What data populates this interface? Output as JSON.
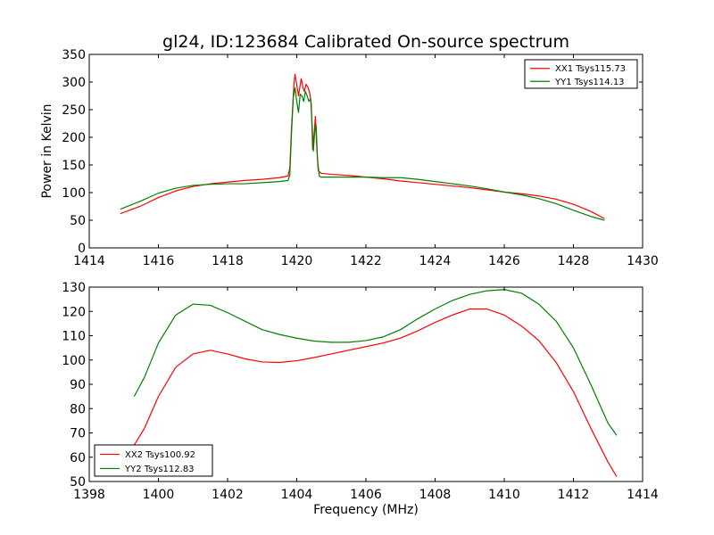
{
  "title": "gl24, ID:123684 Calibrated On-source spectrum",
  "chart_data": [
    {
      "type": "line",
      "ylabel": "Power in Kelvin",
      "xlabel": "",
      "xlim": [
        1414,
        1430
      ],
      "ylim": [
        0,
        350
      ],
      "xticks": [
        1414,
        1416,
        1418,
        1420,
        1422,
        1424,
        1426,
        1428,
        1430
      ],
      "yticks": [
        0,
        50,
        100,
        150,
        200,
        250,
        300,
        350
      ],
      "grid": false,
      "legend": "top-right",
      "series": [
        {
          "name": "XX1 Tsys115.73",
          "color": "#ff0000",
          "points": [
            [
              1414.9,
              62
            ],
            [
              1415.5,
              76
            ],
            [
              1416,
              91
            ],
            [
              1416.5,
              103
            ],
            [
              1417,
              111
            ],
            [
              1417.5,
              116
            ],
            [
              1418,
              119
            ],
            [
              1418.5,
              122
            ],
            [
              1419,
              124
            ],
            [
              1419.5,
              127
            ],
            [
              1419.75,
              130
            ],
            [
              1419.8,
              145
            ],
            [
              1419.85,
              220
            ],
            [
              1419.92,
              298
            ],
            [
              1419.95,
              314
            ],
            [
              1420.0,
              295
            ],
            [
              1420.05,
              275
            ],
            [
              1420.1,
              295
            ],
            [
              1420.13,
              306
            ],
            [
              1420.18,
              290
            ],
            [
              1420.22,
              283
            ],
            [
              1420.27,
              296
            ],
            [
              1420.33,
              290
            ],
            [
              1420.38,
              278
            ],
            [
              1420.42,
              260
            ],
            [
              1420.46,
              178
            ],
            [
              1420.5,
              205
            ],
            [
              1420.54,
              238
            ],
            [
              1420.58,
              180
            ],
            [
              1420.62,
              140
            ],
            [
              1420.7,
              135
            ],
            [
              1421,
              133
            ],
            [
              1421.5,
              131
            ],
            [
              1422,
              128
            ],
            [
              1422.5,
              125
            ],
            [
              1423,
              121
            ],
            [
              1423.5,
              118
            ],
            [
              1424,
              115
            ],
            [
              1424.5,
              112
            ],
            [
              1425,
              109
            ],
            [
              1425.5,
              105
            ],
            [
              1426,
              101
            ],
            [
              1426.5,
              98
            ],
            [
              1427,
              94
            ],
            [
              1427.5,
              88
            ],
            [
              1428,
              79
            ],
            [
              1428.5,
              66
            ],
            [
              1428.9,
              53
            ]
          ]
        },
        {
          "name": "YY1 Tsys114.13",
          "color": "#008000",
          "points": [
            [
              1414.9,
              70
            ],
            [
              1415.5,
              85
            ],
            [
              1416,
              99
            ],
            [
              1416.5,
              108
            ],
            [
              1417,
              113
            ],
            [
              1417.5,
              115
            ],
            [
              1418,
              116
            ],
            [
              1418.5,
              116
            ],
            [
              1419,
              118
            ],
            [
              1419.5,
              120
            ],
            [
              1419.75,
              122
            ],
            [
              1419.8,
              132
            ],
            [
              1419.85,
              210
            ],
            [
              1419.9,
              272
            ],
            [
              1419.95,
              290
            ],
            [
              1420.0,
              265
            ],
            [
              1420.05,
              245
            ],
            [
              1420.1,
              278
            ],
            [
              1420.15,
              275
            ],
            [
              1420.2,
              265
            ],
            [
              1420.25,
              283
            ],
            [
              1420.3,
              275
            ],
            [
              1420.35,
              265
            ],
            [
              1420.4,
              270
            ],
            [
              1420.44,
              228
            ],
            [
              1420.48,
              175
            ],
            [
              1420.52,
              210
            ],
            [
              1420.56,
              222
            ],
            [
              1420.6,
              160
            ],
            [
              1420.65,
              130
            ],
            [
              1420.7,
              128
            ],
            [
              1421,
              128
            ],
            [
              1421.5,
              128
            ],
            [
              1422,
              128
            ],
            [
              1422.5,
              127
            ],
            [
              1423,
              127
            ],
            [
              1423.5,
              124
            ],
            [
              1424,
              120
            ],
            [
              1424.5,
              116
            ],
            [
              1425,
              112
            ],
            [
              1425.5,
              107
            ],
            [
              1426,
              101
            ],
            [
              1426.5,
              96
            ],
            [
              1427,
              89
            ],
            [
              1427.5,
              80
            ],
            [
              1428,
              68
            ],
            [
              1428.5,
              57
            ],
            [
              1428.9,
              50
            ]
          ]
        }
      ]
    },
    {
      "type": "line",
      "ylabel": "",
      "xlabel": "Frequency (MHz)",
      "xlim": [
        1398,
        1414
      ],
      "ylim": [
        50,
        130
      ],
      "xticks": [
        1398,
        1400,
        1402,
        1404,
        1406,
        1408,
        1410,
        1412,
        1414
      ],
      "yticks": [
        50,
        60,
        70,
        80,
        90,
        100,
        110,
        120,
        130
      ],
      "grid": false,
      "legend": "bottom-left",
      "series": [
        {
          "name": "XX2 Tsys100.92",
          "color": "#ff0000",
          "points": [
            [
              1399.3,
              65
            ],
            [
              1399.6,
              72
            ],
            [
              1400,
              85
            ],
            [
              1400.5,
              97
            ],
            [
              1401,
              102.5
            ],
            [
              1401.5,
              104
            ],
            [
              1402,
              102.5
            ],
            [
              1402.5,
              100.5
            ],
            [
              1403,
              99.2
            ],
            [
              1403.5,
              99
            ],
            [
              1404,
              99.7
            ],
            [
              1404.5,
              101
            ],
            [
              1405,
              102.5
            ],
            [
              1405.5,
              104
            ],
            [
              1406,
              105.5
            ],
            [
              1406.5,
              107
            ],
            [
              1407,
              109
            ],
            [
              1407.5,
              112
            ],
            [
              1408,
              115.5
            ],
            [
              1408.5,
              118.5
            ],
            [
              1409,
              121
            ],
            [
              1409.5,
              121
            ],
            [
              1410,
              118.5
            ],
            [
              1410.5,
              114
            ],
            [
              1411,
              108
            ],
            [
              1411.5,
              99
            ],
            [
              1412,
              87
            ],
            [
              1412.5,
              72
            ],
            [
              1413,
              58
            ],
            [
              1413.25,
              52
            ]
          ]
        },
        {
          "name": "YY2 Tsys112.83",
          "color": "#008000",
          "points": [
            [
              1399.3,
              85
            ],
            [
              1399.6,
              93
            ],
            [
              1400,
              107
            ],
            [
              1400.5,
              118.5
            ],
            [
              1401,
              123
            ],
            [
              1401.5,
              122.5
            ],
            [
              1402,
              119.5
            ],
            [
              1402.5,
              116
            ],
            [
              1403,
              112.5
            ],
            [
              1403.5,
              110.5
            ],
            [
              1404,
              109
            ],
            [
              1404.5,
              107.8
            ],
            [
              1405,
              107.3
            ],
            [
              1405.5,
              107.3
            ],
            [
              1406,
              108
            ],
            [
              1406.5,
              109.5
            ],
            [
              1407,
              112.5
            ],
            [
              1407.5,
              117
            ],
            [
              1408,
              121
            ],
            [
              1408.5,
              124.5
            ],
            [
              1409,
              127
            ],
            [
              1409.5,
              128.5
            ],
            [
              1410,
              129
            ],
            [
              1410.5,
              127.5
            ],
            [
              1411,
              123
            ],
            [
              1411.5,
              116
            ],
            [
              1412,
              105
            ],
            [
              1412.5,
              90
            ],
            [
              1413,
              74
            ],
            [
              1413.25,
              69
            ]
          ]
        }
      ]
    }
  ]
}
